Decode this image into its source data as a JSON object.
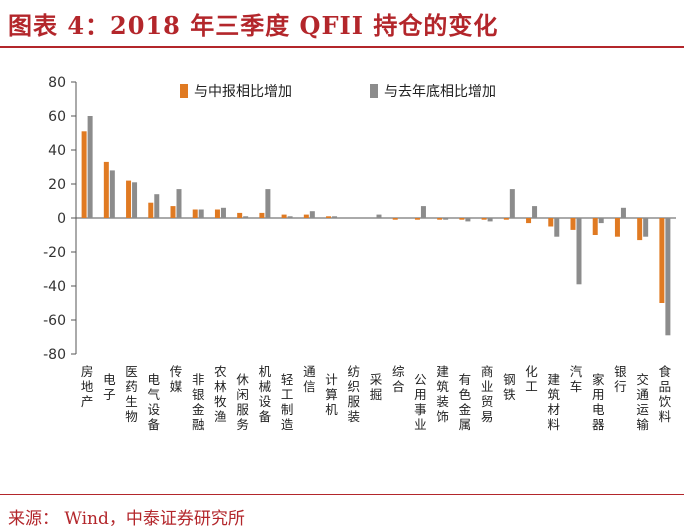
{
  "title": "图表 4：2018 年三季度 QFII 持仓的变化",
  "source": "来源：  Wind，中泰证券研究所",
  "colors": {
    "accent": "#b3262b",
    "series1": "#e07a22",
    "series2": "#8c8c8c",
    "axis": "#555555"
  },
  "chart_data": {
    "type": "bar",
    "categories": [
      "房地产",
      "电子",
      "医药生物",
      "电气设备",
      "传媒",
      "非银金融",
      "农林牧渔",
      "休闲服务",
      "机械设备",
      "轻工制造",
      "通信",
      "计算机",
      "纺织服装",
      "采掘",
      "综合",
      "公用事业",
      "建筑装饰",
      "有色金属",
      "商业贸易",
      "钢铁",
      "化工",
      "建筑材料",
      "汽车",
      "家用电器",
      "银行",
      "交通运输",
      "食品饮料"
    ],
    "series": [
      {
        "name": "与中报相比增加",
        "values": [
          51,
          33,
          22,
          9,
          7,
          5,
          5,
          3,
          3,
          2,
          2,
          1,
          0,
          0,
          -1,
          -1,
          -1,
          -1,
          -1,
          -1,
          -3,
          -5,
          -7,
          -10,
          -11,
          -13,
          -50
        ]
      },
      {
        "name": "与去年底相比增加",
        "values": [
          60,
          28,
          21,
          14,
          17,
          5,
          6,
          1,
          17,
          1,
          4,
          1,
          0,
          2,
          0,
          7,
          -1,
          -2,
          -2,
          17,
          7,
          -11,
          -39,
          -3,
          6,
          -11,
          -69
        ]
      }
    ],
    "ylim": [
      -80,
      80
    ],
    "yticks": [
      80,
      60,
      40,
      20,
      0,
      -20,
      -40,
      -60,
      -80
    ],
    "grid": false,
    "legend_position": "top-right"
  }
}
